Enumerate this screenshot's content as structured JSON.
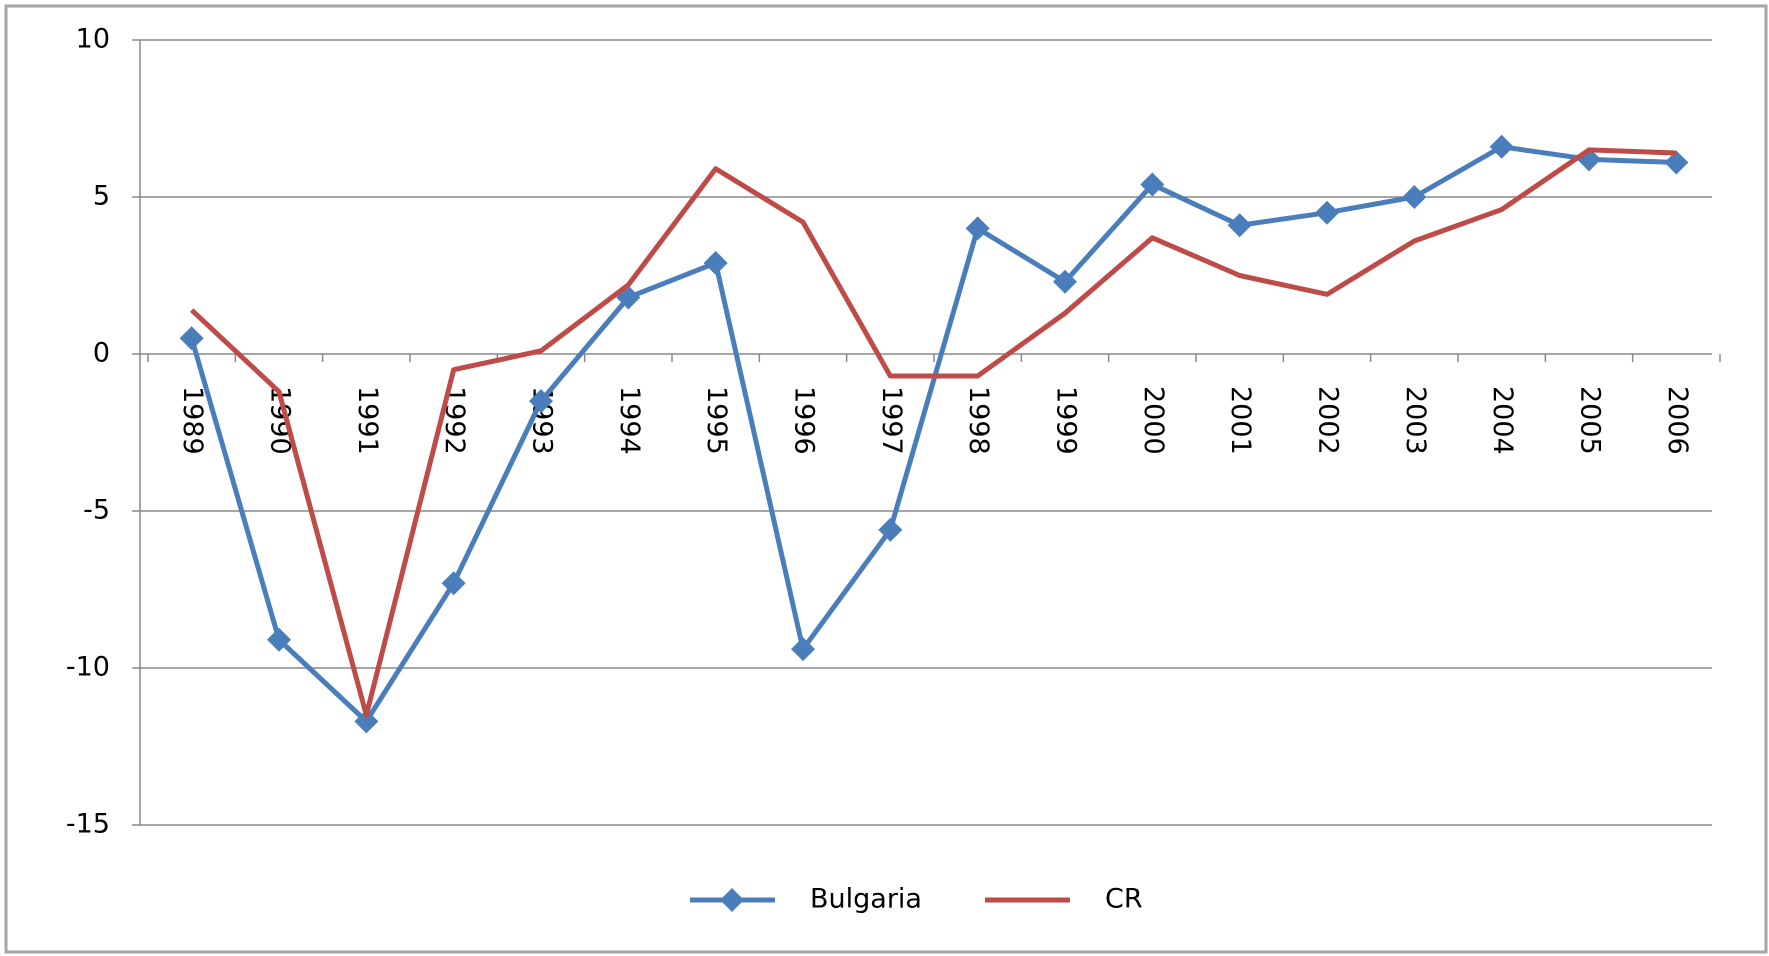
{
  "chart_data": {
    "type": "line",
    "categories": [
      "1989",
      "1990",
      "1991",
      "1992",
      "1993",
      "1994",
      "1995",
      "1996",
      "1997",
      "1998",
      "1999",
      "2000",
      "2001",
      "2002",
      "2003",
      "2004",
      "2005",
      "2006"
    ],
    "series": [
      {
        "name": "Bulgaria",
        "color": "#4a7ebb",
        "marker": "diamond",
        "values": [
          0.5,
          -9.1,
          -11.7,
          -7.3,
          -1.5,
          1.8,
          2.9,
          -9.4,
          -5.6,
          4.0,
          2.3,
          5.4,
          4.1,
          4.5,
          5.0,
          6.6,
          6.2,
          6.1
        ]
      },
      {
        "name": "CR",
        "color": "#be4b48",
        "values": [
          1.4,
          -1.2,
          -11.5,
          -0.5,
          0.1,
          2.2,
          5.9,
          4.2,
          -0.7,
          -0.7,
          1.3,
          3.7,
          2.5,
          1.9,
          3.6,
          4.6,
          6.5,
          6.4
        ]
      }
    ],
    "ylim": [
      -15,
      10
    ],
    "yticks": [
      -15,
      -10,
      -5,
      0,
      5,
      10
    ],
    "grid": true,
    "legend": "bottom"
  }
}
